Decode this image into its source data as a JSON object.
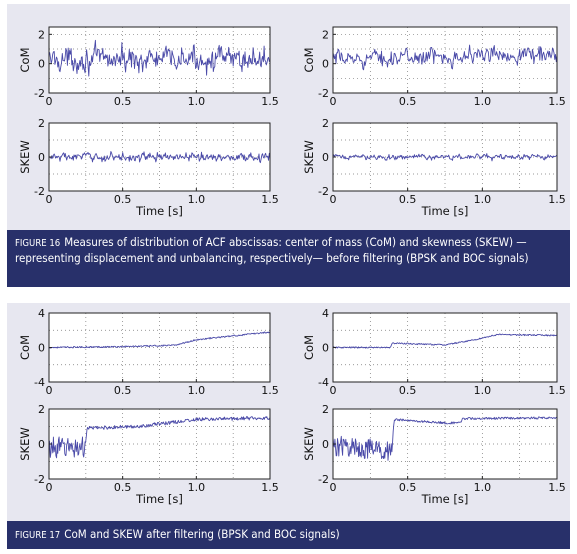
{
  "figures": [
    {
      "number": "FIGURE 16",
      "caption": "Measures of distribution of ACF abscissas: center of mass (CoM) and skewness (SKEW) —representing displacement and unbalancing, respectively— before filtering (BPSK and BOC signals)"
    },
    {
      "number": "FIGURE 17",
      "caption": "CoM and SKEW after filtering (BPSK and BOC signals)"
    }
  ],
  "chart_data": [
    {
      "figure": "FIGURE 16",
      "subplot": "BPSK CoM",
      "type": "line",
      "ylabel": "CoM",
      "xlabel": "",
      "xlim": [
        0,
        1.5
      ],
      "ylim": [
        -2,
        2.5
      ],
      "xticks": [
        "0",
        "0.5",
        "1.0",
        "1.5"
      ],
      "yticks": [
        "2",
        "0",
        "-2"
      ],
      "grid": true,
      "shape": "noise",
      "mean": 0.3,
      "amplitude": 1.1,
      "samples": 300
    },
    {
      "figure": "FIGURE 16",
      "subplot": "BOC CoM",
      "type": "line",
      "ylabel": "CoM",
      "xlabel": "",
      "xlim": [
        0,
        1.5
      ],
      "ylim": [
        -2,
        2.5
      ],
      "xticks": [
        "0",
        "0.5",
        "1.0",
        "1.5"
      ],
      "yticks": [
        "2",
        "0",
        "-2"
      ],
      "grid": true,
      "shape": "noise",
      "mean": 0.3,
      "trend": 0.4,
      "amplitude": 0.75,
      "samples": 300
    },
    {
      "figure": "FIGURE 16",
      "subplot": "BPSK SKEW",
      "type": "line",
      "ylabel": "SKEW",
      "xlabel": "Time [s]",
      "xlim": [
        0,
        1.5
      ],
      "ylim": [
        -2,
        2
      ],
      "xticks": [
        "0",
        "0.5",
        "1.0",
        "1.5"
      ],
      "yticks": [
        "2",
        "0",
        "-2"
      ],
      "grid": true,
      "shape": "noise",
      "mean": 0.0,
      "amplitude": 0.35,
      "samples": 300
    },
    {
      "figure": "FIGURE 16",
      "subplot": "BOC SKEW",
      "type": "line",
      "ylabel": "SKEW",
      "xlabel": "Time [s]",
      "xlim": [
        0,
        1.5
      ],
      "ylim": [
        -2,
        2
      ],
      "xticks": [
        "0",
        "0.5",
        "1.0",
        "1.5"
      ],
      "yticks": [
        "2",
        "0",
        "-2"
      ],
      "grid": true,
      "shape": "noise",
      "mean": 0.0,
      "amplitude": 0.22,
      "samples": 300
    },
    {
      "figure": "FIGURE 17",
      "subplot": "BPSK CoM",
      "type": "line",
      "ylabel": "CoM",
      "xlabel": "",
      "xlim": [
        0,
        1.5
      ],
      "ylim": [
        -4,
        4
      ],
      "xticks": [
        "0",
        "0.5",
        "1.0",
        "1.5"
      ],
      "yticks": [
        "4",
        "0",
        "-4"
      ],
      "grid": true,
      "shape": "piecewise",
      "noise": 0.08,
      "points": [
        [
          0,
          0.0
        ],
        [
          0.5,
          0.1
        ],
        [
          0.85,
          0.25
        ],
        [
          1.0,
          0.9
        ],
        [
          1.5,
          1.8
        ]
      ]
    },
    {
      "figure": "FIGURE 17",
      "subplot": "BOC CoM",
      "type": "line",
      "ylabel": "CoM",
      "xlabel": "",
      "xlim": [
        0,
        1.5
      ],
      "ylim": [
        -4,
        4
      ],
      "xticks": [
        "0",
        "0.5",
        "1.0",
        "1.5"
      ],
      "yticks": [
        "4",
        "0",
        "-4"
      ],
      "grid": true,
      "shape": "piecewise",
      "noise": 0.08,
      "points": [
        [
          0,
          0.0
        ],
        [
          0.38,
          0.0
        ],
        [
          0.4,
          0.5
        ],
        [
          0.75,
          0.3
        ],
        [
          0.95,
          0.9
        ],
        [
          1.1,
          1.5
        ],
        [
          1.5,
          1.4
        ]
      ]
    },
    {
      "figure": "FIGURE 17",
      "subplot": "BPSK SKEW",
      "type": "line",
      "ylabel": "SKEW",
      "xlabel": "Time [s]",
      "xlim": [
        0,
        1.5
      ],
      "ylim": [
        -2,
        2
      ],
      "xticks": [
        "0",
        "0.5",
        "1.0",
        "1.5"
      ],
      "yticks": [
        "2",
        "0",
        "-2"
      ],
      "grid": true,
      "shape": "piecewise",
      "noise": 0.1,
      "early_noise_end": 0.25,
      "early_noise": 0.6,
      "points": [
        [
          0,
          -0.2
        ],
        [
          0.24,
          -0.2
        ],
        [
          0.26,
          0.9
        ],
        [
          0.6,
          1.0
        ],
        [
          1.0,
          1.4
        ],
        [
          1.5,
          1.5
        ]
      ]
    },
    {
      "figure": "FIGURE 17",
      "subplot": "BOC SKEW",
      "type": "line",
      "ylabel": "SKEW",
      "xlabel": "Time [s]",
      "xlim": [
        0,
        1.5
      ],
      "ylim": [
        -2,
        2
      ],
      "xticks": [
        "0",
        "0.5",
        "1.0",
        "1.5"
      ],
      "yticks": [
        "2",
        "0",
        "-2"
      ],
      "grid": true,
      "shape": "piecewise",
      "noise": 0.06,
      "early_noise_end": 0.4,
      "early_noise": 0.6,
      "points": [
        [
          0,
          -0.1
        ],
        [
          0.39,
          -0.4
        ],
        [
          0.41,
          1.4
        ],
        [
          0.75,
          1.2
        ],
        [
          0.85,
          1.2
        ],
        [
          0.87,
          1.45
        ],
        [
          1.5,
          1.5
        ]
      ]
    }
  ]
}
